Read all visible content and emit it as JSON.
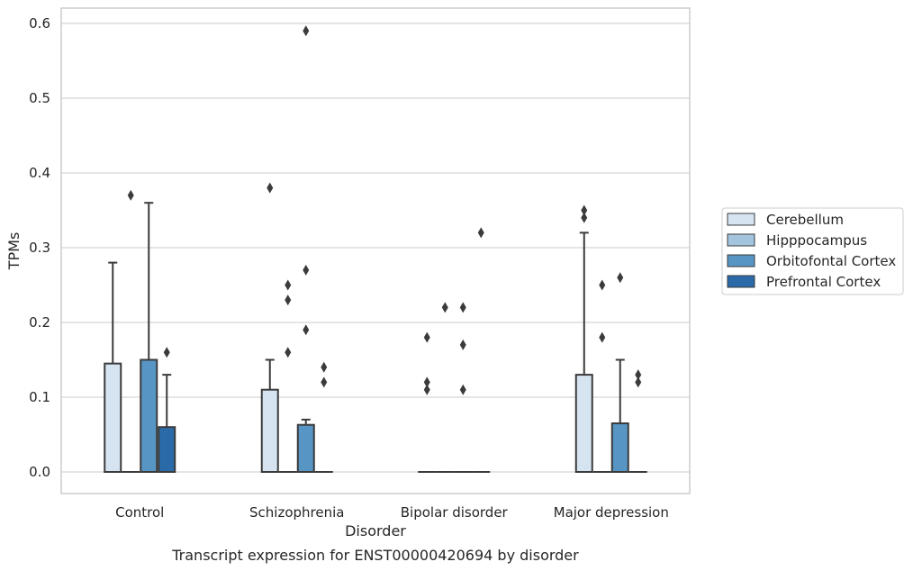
{
  "chart_data": {
    "type": "box",
    "caption": "Transcript expression for ENST00000420694 by disorder",
    "xlabel": "Disorder",
    "ylabel": "TPMs",
    "ylim": [
      -0.03,
      0.62
    ],
    "yticks": [
      "0.0",
      "0.1",
      "0.2",
      "0.3",
      "0.4",
      "0.5",
      "0.6"
    ],
    "grid": true,
    "legend_position": "right",
    "categories": [
      "Control",
      "Schizophrenia",
      "Bipolar disorder",
      "Major depression"
    ],
    "series": [
      {
        "name": "Cerebellum",
        "color": "#d6e4f2",
        "boxes": [
          {
            "q1": 0,
            "median": 0,
            "q3": 0.145,
            "whisker_low": 0,
            "whisker_high": 0.28,
            "outliers": []
          },
          {
            "q1": 0,
            "median": 0,
            "q3": 0.11,
            "whisker_low": 0,
            "whisker_high": 0.15,
            "outliers": [
              0.38
            ]
          },
          {
            "q1": 0,
            "median": 0,
            "q3": 0,
            "whisker_low": 0,
            "whisker_high": 0,
            "outliers": [
              0.18,
              0.12,
              0.11
            ]
          },
          {
            "q1": 0,
            "median": 0,
            "q3": 0.13,
            "whisker_low": 0,
            "whisker_high": 0.32,
            "outliers": [
              0.35,
              0.34
            ]
          }
        ]
      },
      {
        "name": "Hipppocampus",
        "color": "#a3c4dd",
        "boxes": [
          {
            "q1": 0,
            "median": 0,
            "q3": 0,
            "whisker_low": 0,
            "whisker_high": 0,
            "outliers": [
              0.37
            ]
          },
          {
            "q1": 0,
            "median": 0,
            "q3": 0,
            "whisker_low": 0,
            "whisker_high": 0,
            "outliers": [
              0.25,
              0.23,
              0.16
            ]
          },
          {
            "q1": 0,
            "median": 0,
            "q3": 0,
            "whisker_low": 0,
            "whisker_high": 0,
            "outliers": [
              0.22
            ]
          },
          {
            "q1": 0,
            "median": 0,
            "q3": 0,
            "whisker_low": 0,
            "whisker_high": 0,
            "outliers": [
              0.25,
              0.18
            ]
          }
        ]
      },
      {
        "name": "Orbitofontal Cortex",
        "color": "#5796c4",
        "boxes": [
          {
            "q1": 0,
            "median": 0,
            "q3": 0.15,
            "whisker_low": 0,
            "whisker_high": 0.36,
            "outliers": []
          },
          {
            "q1": 0,
            "median": 0,
            "q3": 0.063,
            "whisker_low": 0,
            "whisker_high": 0.07,
            "outliers": [
              0.59,
              0.27,
              0.19
            ]
          },
          {
            "q1": 0,
            "median": 0,
            "q3": 0,
            "whisker_low": 0,
            "whisker_high": 0,
            "outliers": [
              0.22,
              0.17,
              0.11
            ]
          },
          {
            "q1": 0,
            "median": 0,
            "q3": 0.065,
            "whisker_low": 0,
            "whisker_high": 0.15,
            "outliers": [
              0.26
            ]
          }
        ]
      },
      {
        "name": "Prefrontal Cortex",
        "color": "#2a6aa8",
        "boxes": [
          {
            "q1": 0,
            "median": 0,
            "q3": 0.06,
            "whisker_low": 0,
            "whisker_high": 0.13,
            "outliers": [
              0.16
            ]
          },
          {
            "q1": 0,
            "median": 0,
            "q3": 0,
            "whisker_low": 0,
            "whisker_high": 0,
            "outliers": [
              0.14,
              0.12
            ]
          },
          {
            "q1": 0,
            "median": 0,
            "q3": 0,
            "whisker_low": 0,
            "whisker_high": 0,
            "outliers": [
              0.32
            ]
          },
          {
            "q1": 0,
            "median": 0,
            "q3": 0,
            "whisker_low": 0,
            "whisker_high": 0,
            "outliers": [
              0.13,
              0.12
            ]
          }
        ]
      }
    ]
  }
}
